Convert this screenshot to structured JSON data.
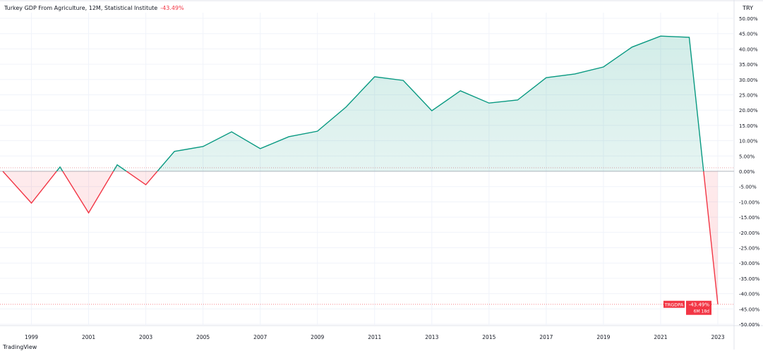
{
  "header": {
    "title": "Turkey GDP From Agriculture, 12M, Statistical Institute",
    "change": "-43.49%",
    "currency": "TRY"
  },
  "badge": {
    "symbol": "TRGDPA",
    "value": "-43.49%",
    "countdown": "6M 18d"
  },
  "logo": "TradingView",
  "colors": {
    "positive": "#089981",
    "negative": "#f23645",
    "positive_fill": "#e3f3ee",
    "negative_fill": "#fde8ea"
  },
  "chart_data": {
    "type": "area",
    "x": [
      1998,
      1999,
      2000,
      2001,
      2002,
      2003,
      2004,
      2005,
      2006,
      2007,
      2008,
      2009,
      2010,
      2011,
      2012,
      2013,
      2014,
      2015,
      2016,
      2017,
      2018,
      2019,
      2020,
      2021,
      2022,
      2023
    ],
    "values": [
      0,
      -10.4,
      1.4,
      -13.6,
      2.1,
      -4.4,
      6.5,
      8.1,
      12.9,
      7.4,
      11.3,
      13.1,
      21.0,
      30.9,
      29.7,
      19.8,
      26.3,
      22.3,
      23.3,
      30.6,
      31.8,
      34.1,
      40.6,
      44.2,
      43.8,
      -43.49
    ],
    "ylim": [
      -53,
      54
    ],
    "xlim": [
      1998,
      2023.6
    ],
    "y_ticks": [
      "50.00%",
      "45.00%",
      "40.00%",
      "35.00%",
      "30.00%",
      "25.00%",
      "20.00%",
      "15.00%",
      "10.00%",
      "5.00%",
      "0.00%",
      "-5.00%",
      "-10.00%",
      "-15.00%",
      "-20.00%",
      "-25.00%",
      "-30.00%",
      "-35.00%",
      "-40.00%",
      "-45.00%",
      "-50.00%"
    ],
    "y_tick_values": [
      50,
      45,
      40,
      35,
      30,
      25,
      20,
      15,
      10,
      5,
      0,
      -5,
      -10,
      -15,
      -20,
      -25,
      -30,
      -35,
      -40,
      -45,
      -50
    ],
    "x_ticks": [
      "1999",
      "2001",
      "2003",
      "2005",
      "2007",
      "2009",
      "2011",
      "2013",
      "2015",
      "2017",
      "2019",
      "2021",
      "2023"
    ],
    "x_tick_values": [
      1999,
      2001,
      2003,
      2005,
      2007,
      2009,
      2011,
      2013,
      2015,
      2017,
      2019,
      2021,
      2023
    ],
    "grid": true,
    "xlabel": "",
    "ylabel": ""
  }
}
